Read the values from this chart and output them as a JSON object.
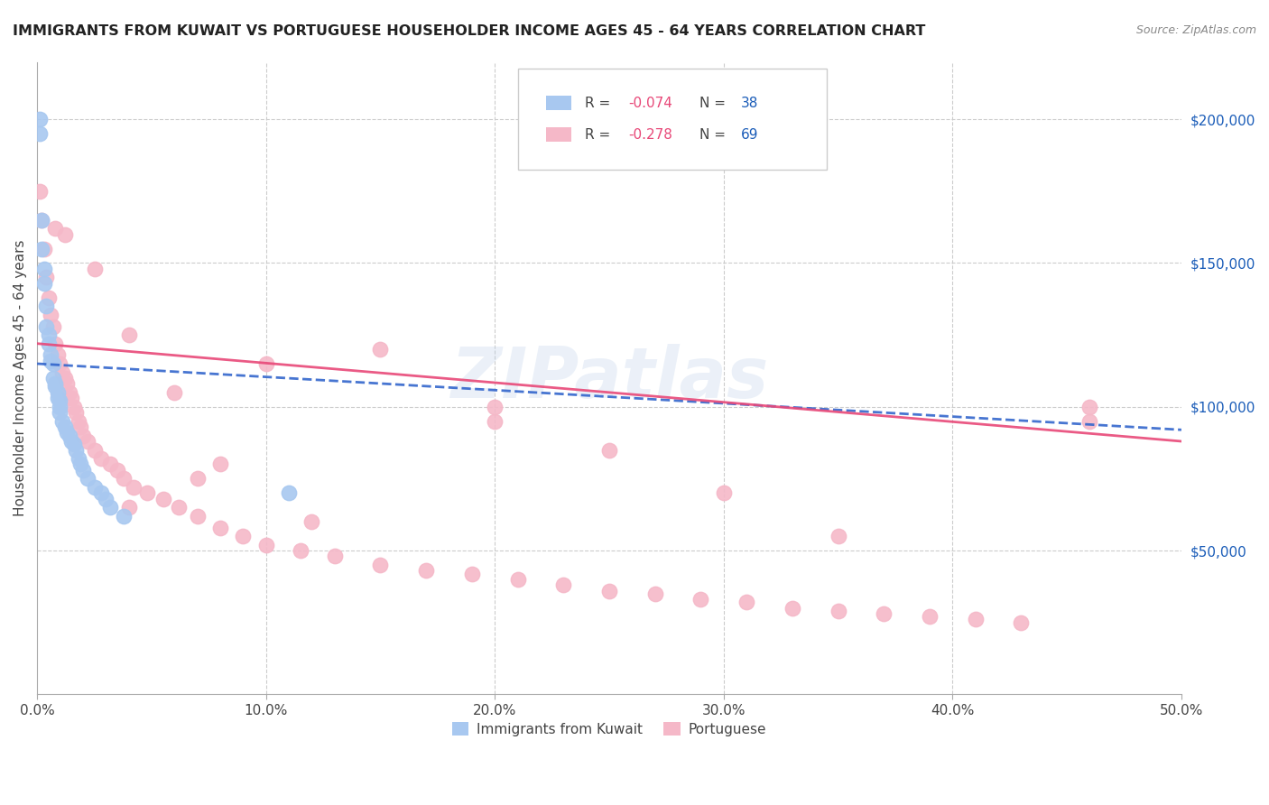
{
  "title": "IMMIGRANTS FROM KUWAIT VS PORTUGUESE HOUSEHOLDER INCOME AGES 45 - 64 YEARS CORRELATION CHART",
  "source": "Source: ZipAtlas.com",
  "ylabel": "Householder Income Ages 45 - 64 years",
  "xlim": [
    0.0,
    0.5
  ],
  "ylim": [
    0,
    220000
  ],
  "xticks": [
    0.0,
    0.1,
    0.2,
    0.3,
    0.4,
    0.5
  ],
  "xticklabels": [
    "0.0%",
    "10.0%",
    "20.0%",
    "30.0%",
    "40.0%",
    "50.0%"
  ],
  "yticks_right": [
    50000,
    100000,
    150000,
    200000
  ],
  "ytick_labels_right": [
    "$50,000",
    "$100,000",
    "$150,000",
    "$200,000"
  ],
  "r_kuwait": "-0.074",
  "n_kuwait": "38",
  "r_portuguese": "-0.278",
  "n_portuguese": "69",
  "kuwait_fill": "#a8c8f0",
  "portuguese_fill": "#f5b8c8",
  "kuwait_line_color": "#3366cc",
  "portuguese_line_color": "#e84878",
  "background_color": "#ffffff",
  "grid_color": "#cccccc",
  "watermark": "ZIPatlas",
  "kuwait_x": [
    0.001,
    0.001,
    0.002,
    0.002,
    0.003,
    0.003,
    0.004,
    0.004,
    0.005,
    0.005,
    0.006,
    0.006,
    0.007,
    0.007,
    0.008,
    0.008,
    0.009,
    0.009,
    0.01,
    0.01,
    0.01,
    0.011,
    0.012,
    0.013,
    0.014,
    0.015,
    0.016,
    0.017,
    0.018,
    0.019,
    0.02,
    0.022,
    0.025,
    0.028,
    0.03,
    0.032,
    0.038,
    0.11
  ],
  "kuwait_y": [
    200000,
    195000,
    165000,
    155000,
    148000,
    143000,
    135000,
    128000,
    125000,
    122000,
    118000,
    116000,
    115000,
    110000,
    108000,
    107000,
    105000,
    103000,
    102000,
    100000,
    98000,
    95000,
    93000,
    91000,
    90000,
    88000,
    87000,
    85000,
    82000,
    80000,
    78000,
    75000,
    72000,
    70000,
    68000,
    65000,
    62000,
    70000
  ],
  "portuguese_x": [
    0.001,
    0.002,
    0.003,
    0.004,
    0.005,
    0.006,
    0.007,
    0.008,
    0.009,
    0.01,
    0.011,
    0.012,
    0.013,
    0.014,
    0.015,
    0.016,
    0.017,
    0.018,
    0.019,
    0.02,
    0.022,
    0.025,
    0.028,
    0.032,
    0.035,
    0.038,
    0.042,
    0.048,
    0.055,
    0.062,
    0.07,
    0.08,
    0.09,
    0.1,
    0.115,
    0.13,
    0.15,
    0.17,
    0.19,
    0.21,
    0.23,
    0.25,
    0.27,
    0.29,
    0.31,
    0.33,
    0.35,
    0.37,
    0.39,
    0.41,
    0.43,
    0.46,
    0.008,
    0.012,
    0.025,
    0.04,
    0.06,
    0.08,
    0.1,
    0.15,
    0.2,
    0.25,
    0.3,
    0.35,
    0.04,
    0.07,
    0.12,
    0.2,
    0.46
  ],
  "portuguese_y": [
    175000,
    165000,
    155000,
    145000,
    138000,
    132000,
    128000,
    122000,
    118000,
    115000,
    112000,
    110000,
    108000,
    105000,
    103000,
    100000,
    98000,
    95000,
    93000,
    90000,
    88000,
    85000,
    82000,
    80000,
    78000,
    75000,
    72000,
    70000,
    68000,
    65000,
    62000,
    58000,
    55000,
    52000,
    50000,
    48000,
    45000,
    43000,
    42000,
    40000,
    38000,
    36000,
    35000,
    33000,
    32000,
    30000,
    29000,
    28000,
    27000,
    26000,
    25000,
    95000,
    162000,
    160000,
    148000,
    125000,
    105000,
    80000,
    115000,
    120000,
    100000,
    85000,
    70000,
    55000,
    65000,
    75000,
    60000,
    95000,
    100000
  ]
}
